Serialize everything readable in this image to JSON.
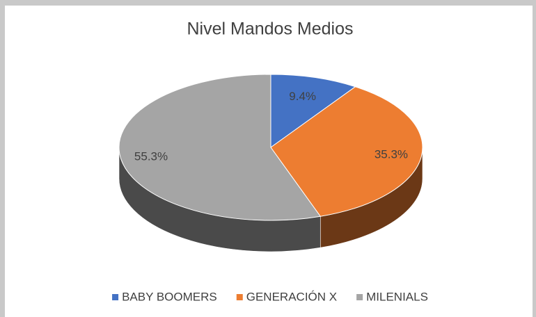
{
  "chart_data": {
    "type": "pie",
    "title": "Nivel Mandos Medios",
    "categories": [
      "BABY BOOMERS",
      "GENERACIÓN X",
      "MILENIALS"
    ],
    "values": [
      9.4,
      35.3,
      55.3
    ],
    "value_labels": [
      "9.4%",
      "35.3%",
      "55.3%"
    ],
    "colors": [
      "#4472c4",
      "#ed7d31",
      "#a5a5a5"
    ],
    "legend": "bottom"
  }
}
